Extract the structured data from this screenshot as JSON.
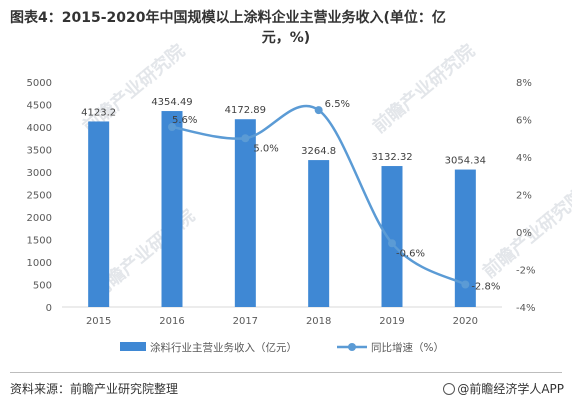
{
  "title_line1": "图表4：2015-2020年中国规模以上涂料企业主营业务收入(单位：亿",
  "title_line2": "元，%)",
  "source_text": "资料来源：前瞻产业研究院整理",
  "brand_text": "@前瞻经济学人APP",
  "watermark_text": "前瞻产业研究院",
  "colors": {
    "bar": "#3f88d4",
    "line": "#5b9bd5",
    "text": "#595959",
    "grid": "#d9d9d9"
  },
  "chart_data": {
    "type": "bar+line",
    "categories": [
      "2015",
      "2016",
      "2017",
      "2018",
      "2019",
      "2020"
    ],
    "series": [
      {
        "name": "涂料行业主营业务收入（亿元）",
        "type": "bar",
        "axis": "left",
        "values": [
          4123.2,
          4354.49,
          4172.89,
          3264.8,
          3132.32,
          3054.34
        ],
        "labels": [
          "4123.2",
          "4354.49",
          "4172.89",
          "3264.8",
          "3132.32",
          "3054.34"
        ]
      },
      {
        "name": "同比增速（%）",
        "type": "line",
        "axis": "right",
        "values": [
          null,
          5.6,
          5.0,
          6.5,
          -0.6,
          -2.8
        ],
        "labels": [
          "",
          "5.6%",
          "5.0%",
          "6.5%",
          "-0.6%",
          "-2.8%"
        ]
      }
    ],
    "y_left": {
      "min": 0,
      "max": 5000,
      "step": 500,
      "ticks": [
        "0",
        "500",
        "1000",
        "1500",
        "2000",
        "2500",
        "3000",
        "3500",
        "4000",
        "4500",
        "5000"
      ]
    },
    "y_right": {
      "min": -4,
      "max": 8,
      "step": 2,
      "ticks": [
        "-4%",
        "-2%",
        "0%",
        "2%",
        "4%",
        "6%",
        "8%"
      ]
    },
    "grid": false,
    "legend_position": "bottom"
  }
}
